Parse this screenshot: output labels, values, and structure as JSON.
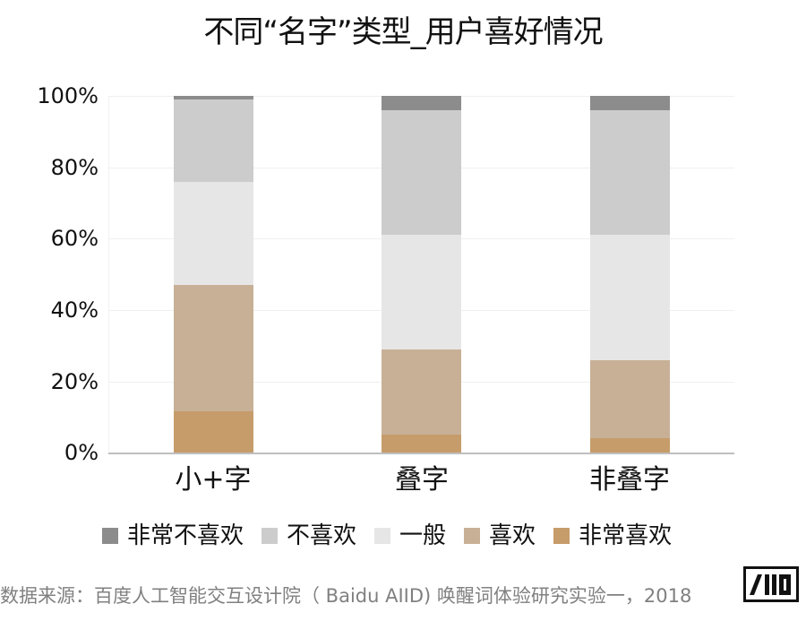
{
  "title": "不同“名字”类型_用户喜好情况",
  "y_ticks": [
    "100%",
    "80%",
    "60%",
    "40%",
    "20%",
    "0%"
  ],
  "legend": [
    {
      "label": "非常不喜欢",
      "color": "#8c8c8c"
    },
    {
      "label": "不喜欢",
      "color": "#cccccc"
    },
    {
      "label": "一般",
      "color": "#e6e6e6"
    },
    {
      "label": "喜欢",
      "color": "#c8b096"
    },
    {
      "label": "非常喜欢",
      "color": "#c69c6a"
    }
  ],
  "categories": [
    "小+字",
    "叠字",
    "非叠字"
  ],
  "source": "数据来源：百度人工智能交互设计院（ Baidu AIID) 唤醒词体验研究实验一，2018",
  "logo": "AIID-logo",
  "chart_data": {
    "type": "bar",
    "stacked": true,
    "normalized": true,
    "title": "不同“名字”类型_用户喜好情况",
    "xlabel": "",
    "ylabel": "",
    "ylim": [
      0,
      100
    ],
    "y_tick_labels": [
      "0%",
      "20%",
      "40%",
      "60%",
      "80%",
      "100%"
    ],
    "grid": true,
    "legend_position": "bottom",
    "categories": [
      "小+字",
      "叠字",
      "非叠字"
    ],
    "series": [
      {
        "name": "非常喜欢",
        "color": "#c69c6a",
        "values": [
          11.5,
          5,
          4
        ]
      },
      {
        "name": "喜欢",
        "color": "#c8b096",
        "values": [
          35.5,
          24,
          22
        ]
      },
      {
        "name": "一般",
        "color": "#e6e6e6",
        "values": [
          29,
          32,
          35
        ]
      },
      {
        "name": "不喜欢",
        "color": "#cccccc",
        "values": [
          23,
          35,
          35
        ]
      },
      {
        "name": "非常不喜欢",
        "color": "#8c8c8c",
        "values": [
          1,
          4,
          4
        ]
      }
    ],
    "source": "数据来源：百度人工智能交互设计院（ Baidu AIID) 唤醒词体验研究实验一，2018"
  }
}
